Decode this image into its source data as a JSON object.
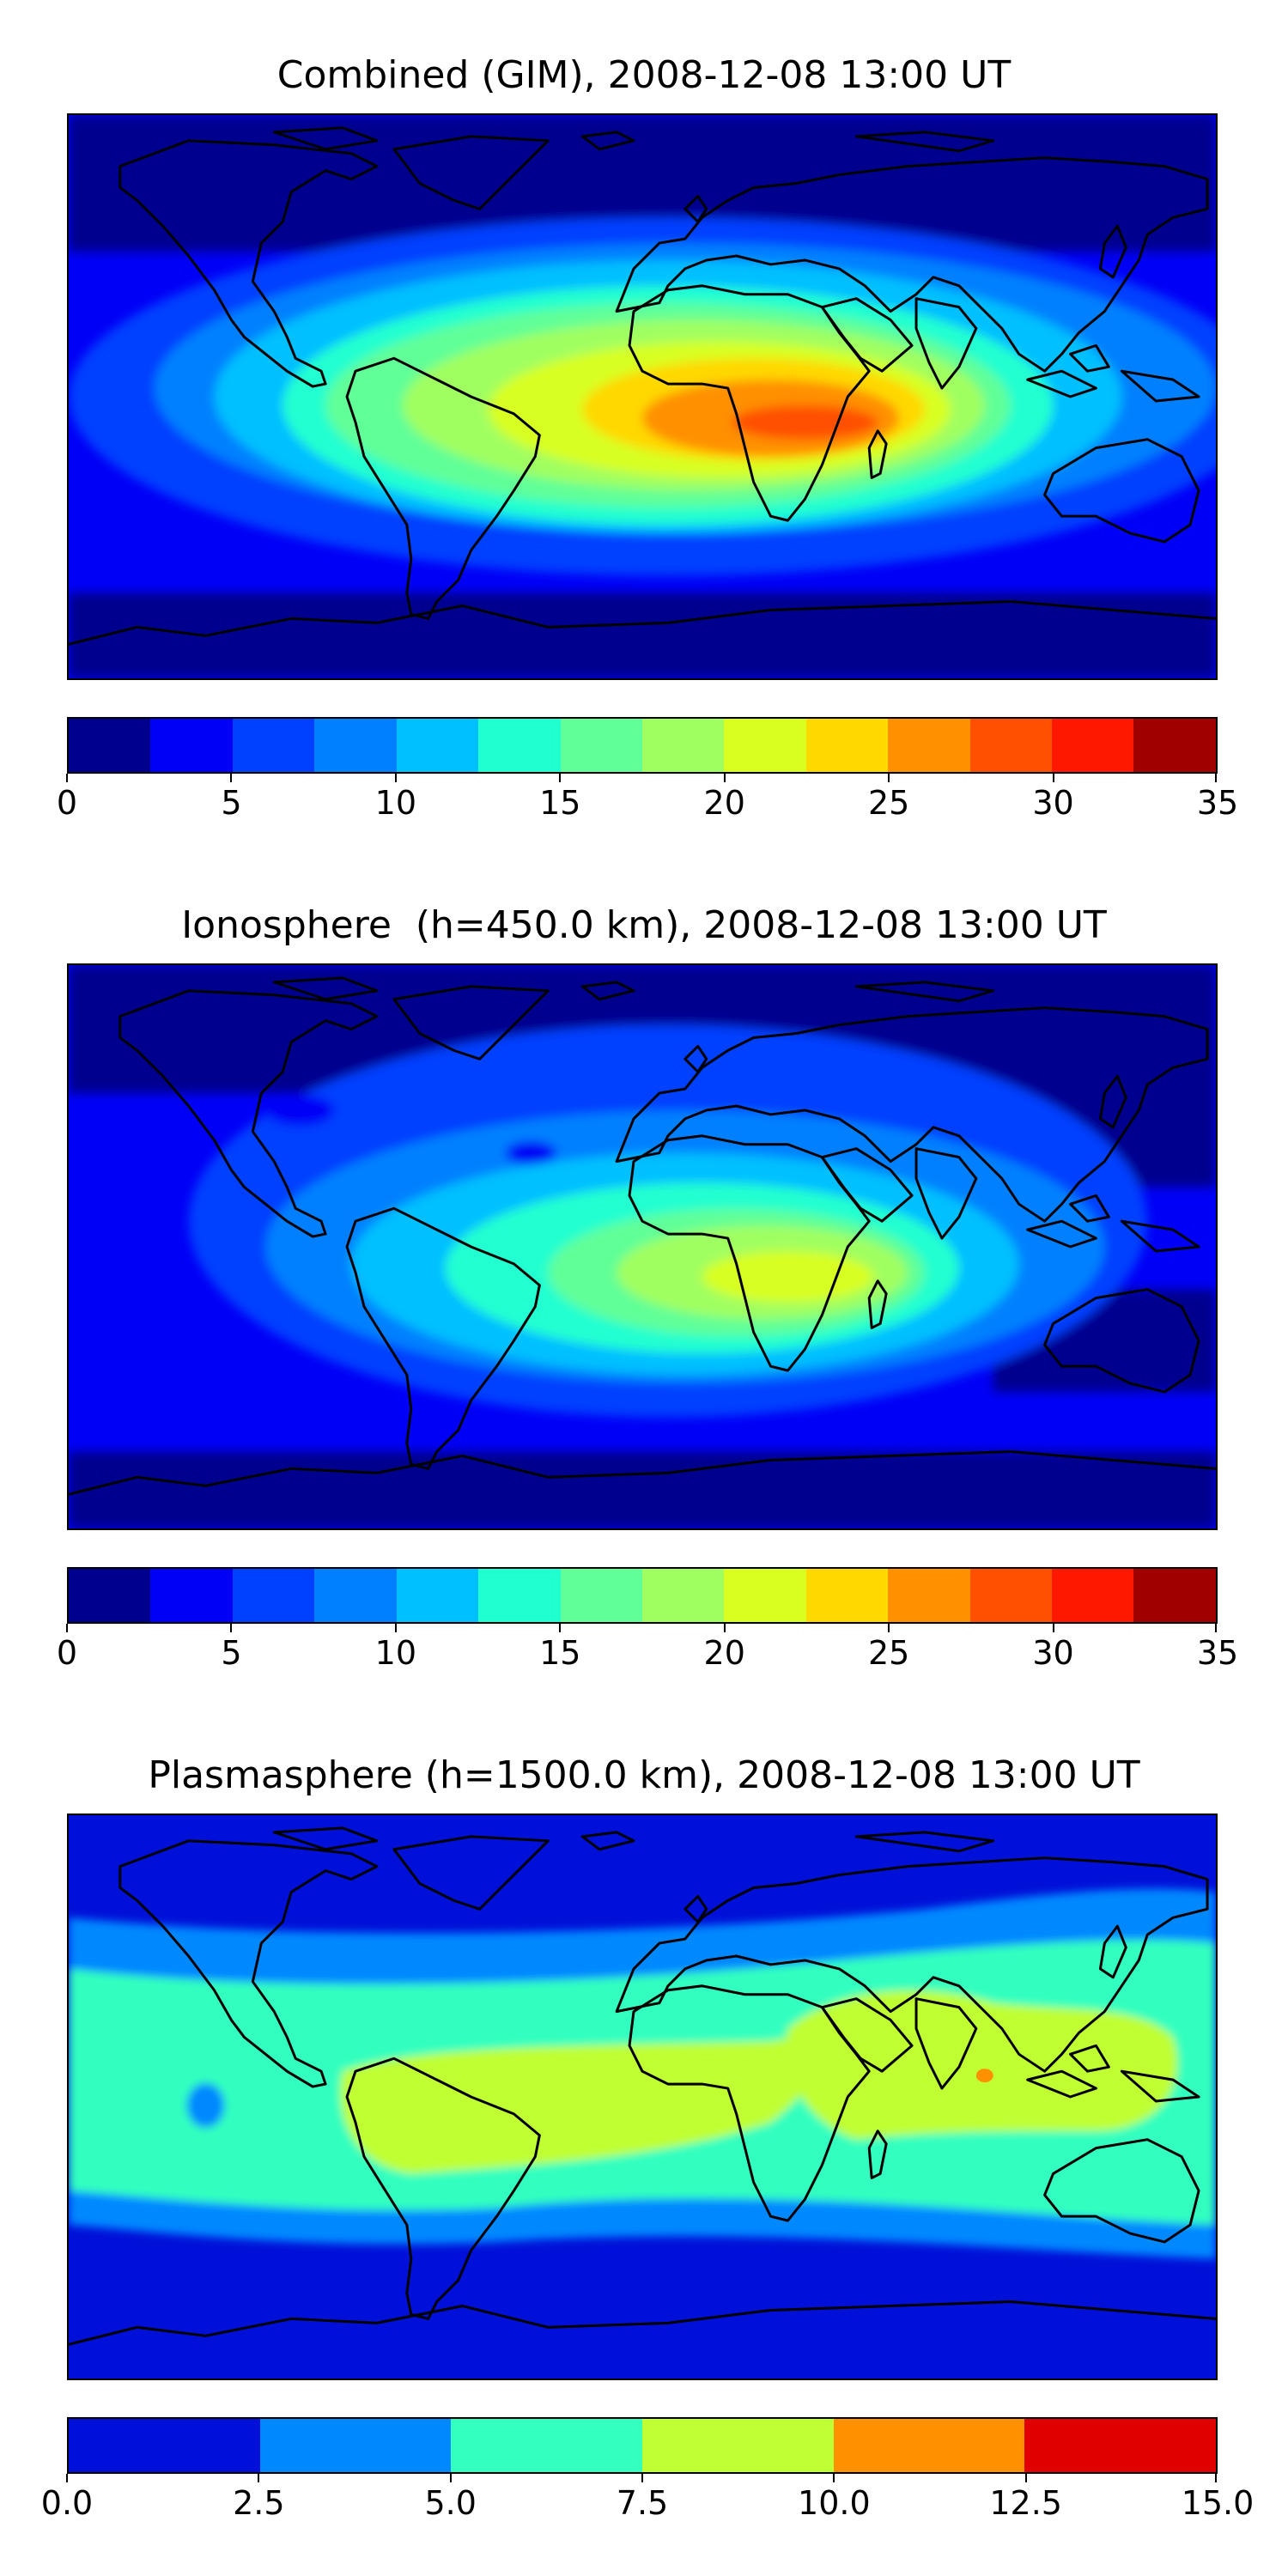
{
  "panels": [
    {
      "title": "Combined (GIM), 2008-12-08 13:00 UT",
      "colorbar": {
        "colors": [
          "#00008f",
          "#0000f6",
          "#0040ff",
          "#0080ff",
          "#00c0ff",
          "#20ffd0",
          "#60ff98",
          "#a0ff60",
          "#d8ff20",
          "#ffd800",
          "#ff9000",
          "#ff5000",
          "#ff1800",
          "#a00000"
        ],
        "tick_labels": [
          "0",
          "5",
          "10",
          "15",
          "20",
          "25",
          "30",
          "35"
        ],
        "ticks": [
          0,
          5,
          10,
          15,
          20,
          25,
          30,
          35
        ],
        "range": [
          0,
          35
        ]
      }
    },
    {
      "title": "Ionosphere  (h=450.0 km), 2008-12-08 13:00 UT",
      "colorbar": {
        "colors": [
          "#00008f",
          "#0000f6",
          "#0040ff",
          "#0080ff",
          "#00c0ff",
          "#20ffd0",
          "#60ff98",
          "#a0ff60",
          "#d8ff20",
          "#ffd800",
          "#ff9000",
          "#ff5000",
          "#ff1800",
          "#a00000"
        ],
        "tick_labels": [
          "0",
          "5",
          "10",
          "15",
          "20",
          "25",
          "30",
          "35"
        ],
        "ticks": [
          0,
          5,
          10,
          15,
          20,
          25,
          30,
          35
        ],
        "range": [
          0,
          35
        ]
      }
    },
    {
      "title": "Plasmasphere (h=1500.0 km), 2008-12-08 13:00 UT",
      "colorbar": {
        "colors": [
          "#0010d8",
          "#0088ff",
          "#33ffbf",
          "#c0ff33",
          "#ff9000",
          "#e00000"
        ],
        "tick_labels": [
          "0.0",
          "2.5",
          "5.0",
          "7.5",
          "10.0",
          "12.5",
          "15.0"
        ],
        "ticks": [
          0,
          2.5,
          5,
          7.5,
          10,
          12.5,
          15
        ],
        "range": [
          0,
          15
        ]
      }
    }
  ]
}
